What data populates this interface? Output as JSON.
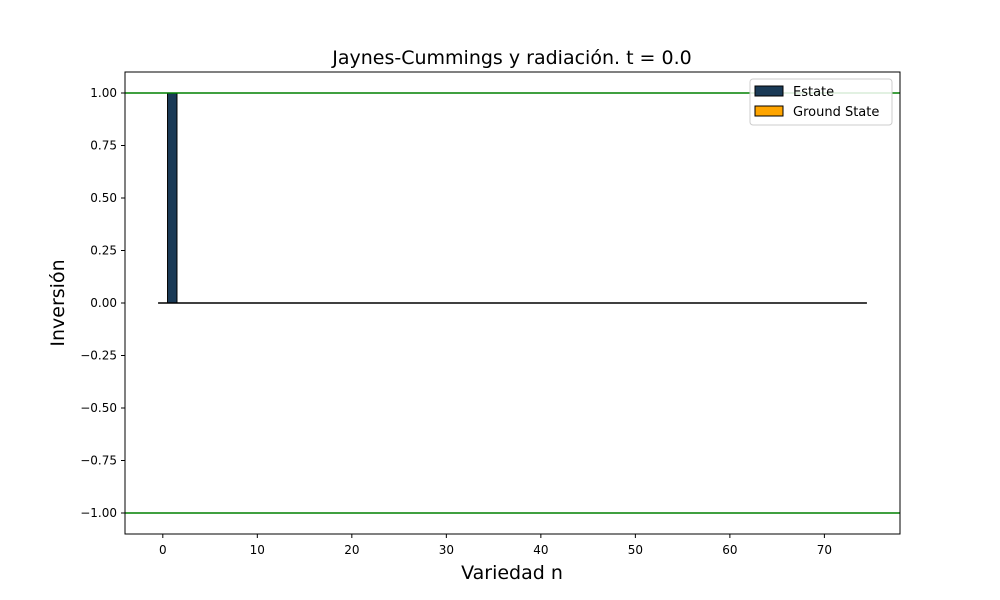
{
  "chart_data": {
    "type": "bar",
    "title": "Jaynes-Cummings y radiación. t = 0.0",
    "xlabel": "Variedad n",
    "ylabel": "Inversión",
    "xlim": [
      -4,
      78
    ],
    "ylim": [
      -1.1,
      1.1
    ],
    "xticks": [
      0,
      10,
      20,
      30,
      40,
      50,
      60,
      70
    ],
    "yticks": [
      1.0,
      0.75,
      0.5,
      0.25,
      0.0,
      -0.25,
      -0.5,
      -0.75,
      -1.0
    ],
    "ytick_labels": [
      "1.00",
      "0.75",
      "0.50",
      "0.25",
      "0.00",
      "−0.25",
      "−0.50",
      "−0.75",
      "−1.00"
    ],
    "bar_width": 1,
    "baseline": {
      "from": -0.5,
      "to": 74.5,
      "y": 0,
      "color": "#000000"
    },
    "hlines": [
      {
        "y": 1.0,
        "color": "#008000"
      },
      {
        "y": -1.0,
        "color": "#008000"
      }
    ],
    "series": [
      {
        "name": "Estate",
        "color": "#1a3a56",
        "x": [
          1
        ],
        "values": [
          1.0
        ]
      },
      {
        "name": "Ground State",
        "color": "#ffa500",
        "x": [],
        "values": []
      }
    ],
    "legend": {
      "position": "top-right"
    },
    "grid": false
  }
}
